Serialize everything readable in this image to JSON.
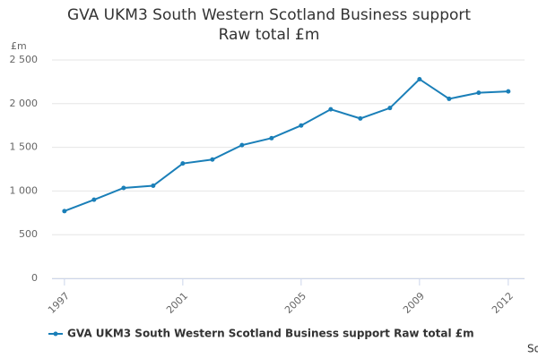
{
  "chart_data": {
    "type": "line",
    "title": "GVA UKM3 South Western Scotland Business support Raw total £m",
    "y_label": "£m",
    "source": "Source:",
    "x": [
      1997,
      1998,
      1999,
      2000,
      2001,
      2002,
      2003,
      2004,
      2005,
      2006,
      2007,
      2008,
      2009,
      2010,
      2011,
      2012
    ],
    "xlim": [
      1996.58,
      2012.55
    ],
    "xticks": [
      1997,
      2001,
      2005,
      2009,
      2012
    ],
    "ylim": [
      0,
      2500
    ],
    "yticks": [
      0,
      500,
      {
        "value": 1000,
        "label": "1 000"
      },
      {
        "value": 1500,
        "label": "1 500"
      },
      {
        "value": 2000,
        "label": "2 000"
      },
      {
        "value": 2500,
        "label": "2 500"
      }
    ],
    "grid": true,
    "legend": "bottom-left",
    "series": [
      {
        "name": "GVA UKM3 South Western Scotland Business support Raw total £m",
        "color": "#1a7fb8",
        "values": [
          770,
          900,
          1035,
          1060,
          1315,
          1360,
          1525,
          1605,
          1750,
          1935,
          1830,
          1950,
          2280,
          2055,
          2125,
          2140
        ]
      }
    ]
  }
}
